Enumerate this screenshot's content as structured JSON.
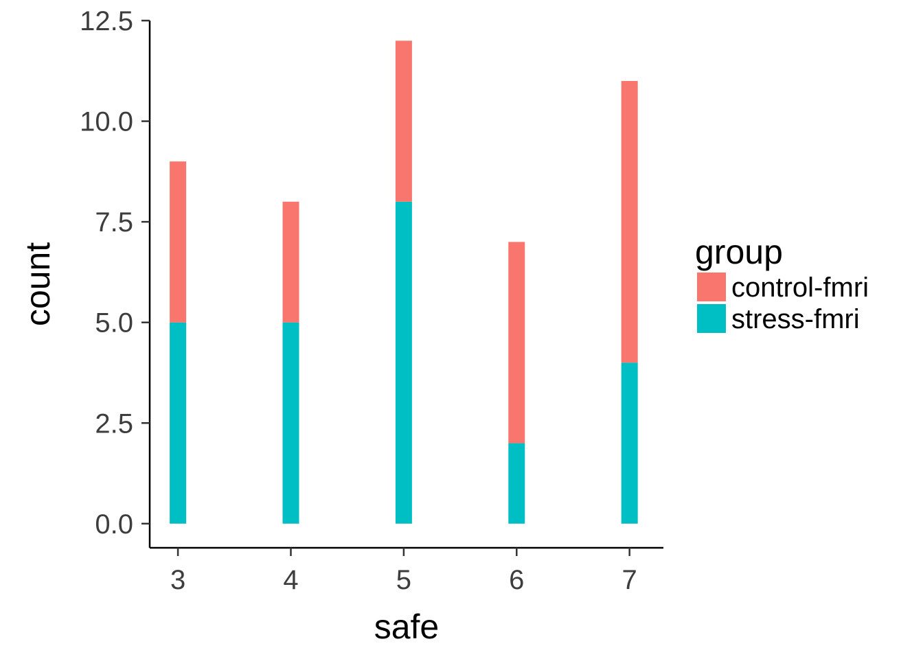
{
  "chart_data": {
    "type": "bar",
    "stacked": true,
    "categories": [
      "3",
      "4",
      "5",
      "6",
      "7"
    ],
    "x": [
      3,
      4,
      5,
      6,
      7
    ],
    "series": [
      {
        "name": "control-fmri",
        "color": "#F8766D",
        "values": [
          4,
          3,
          4,
          5,
          7
        ]
      },
      {
        "name": "stress-fmri",
        "color": "#00BFC4",
        "values": [
          5,
          5,
          8,
          2,
          4
        ]
      }
    ],
    "xlabel": "safe",
    "ylabel": "count",
    "ylim": [
      -0.6,
      12.5
    ],
    "xlim": [
      2.75,
      7.3
    ],
    "yticks": [
      0,
      2.5,
      5,
      7.5,
      10,
      12.5
    ],
    "ytick_labels": [
      "0.0",
      "2.5",
      "5.0",
      "7.5",
      "10.0",
      "12.5"
    ],
    "xticks": [
      3,
      4,
      5,
      6,
      7
    ],
    "xtick_labels": [
      "3",
      "4",
      "5",
      "6",
      "7"
    ],
    "legend": {
      "title": "group",
      "placement": "right",
      "entries": [
        {
          "label": "control-fmri",
          "color": "#F8766D"
        },
        {
          "label": "stress-fmri",
          "color": "#00BFC4"
        }
      ]
    },
    "grid": false
  }
}
